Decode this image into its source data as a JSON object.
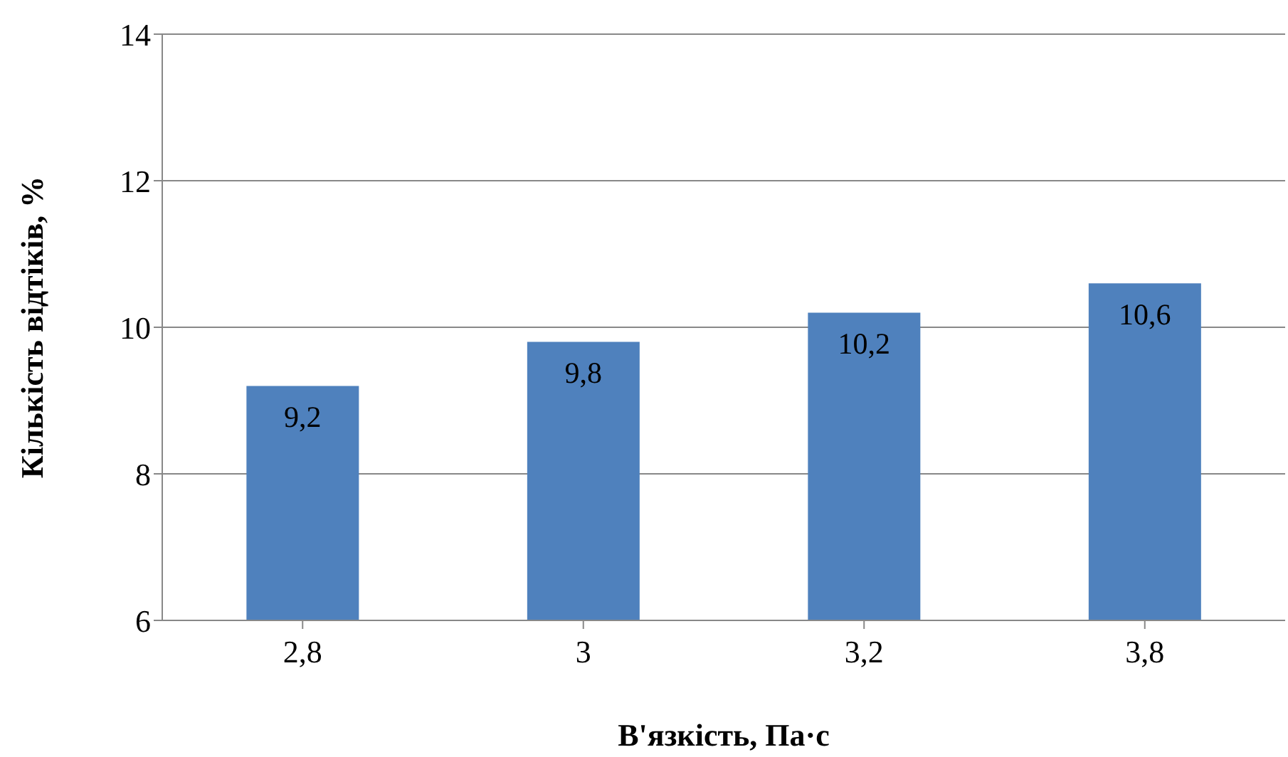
{
  "chart_data": {
    "type": "bar",
    "xlabel": "В'язкість, Па·с",
    "ylabel": "Кількість відтіків, %",
    "categories": [
      "2,8",
      "3",
      "3,2",
      "3,8"
    ],
    "values": [
      9.2,
      9.8,
      10.2,
      10.6
    ],
    "value_labels": [
      "9,2",
      "9,8",
      "10,2",
      "10,6"
    ],
    "color": "#4f81bd",
    "ylim": [
      6,
      14
    ],
    "yticks": [
      6,
      8,
      10,
      12,
      14
    ],
    "grid": "y"
  }
}
